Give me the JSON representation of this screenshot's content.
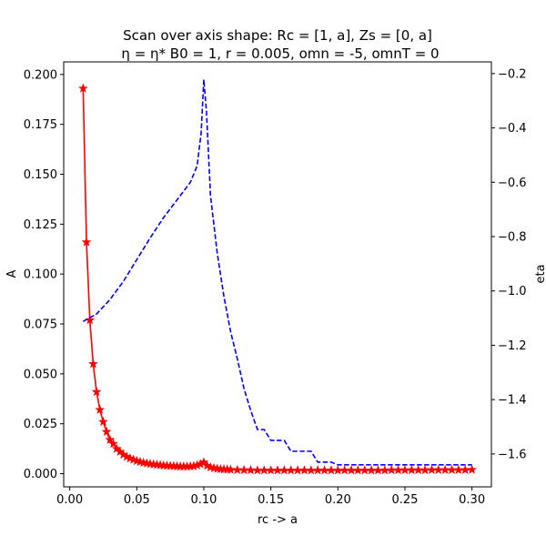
{
  "chart_data": {
    "type": "line",
    "title_line1": "Scan over axis shape: Rc = [1, a], Zs = [0, a]",
    "title_line2": "η = η* B0 = 1, r = 0.005, omn = -5, omnT = 0",
    "xlabel": "rc -> a",
    "ylabel": "A",
    "y2label": "eta",
    "xlim": [
      -0.0045,
      0.3145
    ],
    "ylim": [
      -0.0066,
      0.2063
    ],
    "y2lim": [
      -1.721,
      -0.157
    ],
    "xticks": [
      "0.00",
      "0.05",
      "0.10",
      "0.15",
      "0.20",
      "0.25",
      "0.30"
    ],
    "xtick_values": [
      0.0,
      0.05,
      0.1,
      0.15,
      0.2,
      0.25,
      0.3
    ],
    "yticks": [
      "0.000",
      "0.025",
      "0.050",
      "0.075",
      "0.100",
      "0.125",
      "0.150",
      "0.175",
      "0.200"
    ],
    "ytick_values": [
      0.0,
      0.025,
      0.05,
      0.075,
      0.1,
      0.125,
      0.15,
      0.175,
      0.2
    ],
    "y2ticks": [
      "−1.6",
      "−1.4",
      "−1.2",
      "−1.0",
      "−0.8",
      "−0.6",
      "−0.4",
      "−0.2"
    ],
    "y2tick_values": [
      -1.6,
      -1.4,
      -1.2,
      -1.0,
      -0.8,
      -0.6,
      -0.4,
      -0.2
    ],
    "grid": false,
    "series": [
      {
        "axis": "left",
        "color": "#ff0000",
        "style": "solid",
        "marker": "star",
        "x": [
          0.01,
          0.0125,
          0.015,
          0.0175,
          0.02,
          0.0225,
          0.025,
          0.0275,
          0.03,
          0.0325,
          0.035,
          0.0375,
          0.04,
          0.0425,
          0.045,
          0.0475,
          0.05,
          0.0525,
          0.055,
          0.0575,
          0.06,
          0.0625,
          0.065,
          0.0675,
          0.07,
          0.0725,
          0.075,
          0.0775,
          0.08,
          0.0825,
          0.085,
          0.0875,
          0.09,
          0.0925,
          0.095,
          0.0975,
          0.1,
          0.1025,
          0.105,
          0.1075,
          0.11,
          0.1125,
          0.115,
          0.1175,
          0.12,
          0.125,
          0.13,
          0.135,
          0.14,
          0.145,
          0.15,
          0.155,
          0.16,
          0.165,
          0.17,
          0.175,
          0.18,
          0.185,
          0.19,
          0.195,
          0.2,
          0.205,
          0.21,
          0.215,
          0.22,
          0.225,
          0.23,
          0.235,
          0.24,
          0.245,
          0.25,
          0.255,
          0.26,
          0.265,
          0.27,
          0.275,
          0.28,
          0.285,
          0.29,
          0.295,
          0.3
        ],
        "values": [
          0.193,
          0.116,
          0.077,
          0.055,
          0.041,
          0.032,
          0.026,
          0.021,
          0.017,
          0.015,
          0.0125,
          0.011,
          0.0095,
          0.0085,
          0.0077,
          0.007,
          0.0064,
          0.0059,
          0.0055,
          0.0052,
          0.0049,
          0.0047,
          0.0045,
          0.0043,
          0.0041,
          0.004,
          0.0039,
          0.0038,
          0.0037,
          0.0036,
          0.0036,
          0.0036,
          0.0037,
          0.0038,
          0.0042,
          0.0048,
          0.0057,
          0.004,
          0.0032,
          0.0028,
          0.0025,
          0.0023,
          0.0022,
          0.0021,
          0.002,
          0.0019,
          0.0018,
          0.0018,
          0.0017,
          0.0017,
          0.0017,
          0.0017,
          0.0017,
          0.0017,
          0.0017,
          0.0017,
          0.0017,
          0.0017,
          0.0017,
          0.0017,
          0.0017,
          0.0017,
          0.0017,
          0.0017,
          0.0017,
          0.0017,
          0.0017,
          0.0017,
          0.0018,
          0.0018,
          0.0018,
          0.0018,
          0.0018,
          0.0018,
          0.0019,
          0.0019,
          0.0019,
          0.0019,
          0.0019,
          0.0019,
          0.002
        ]
      },
      {
        "axis": "right",
        "color": "#0000ff",
        "style": "dashed",
        "marker": "none",
        "x": [
          0.01,
          0.02,
          0.03,
          0.04,
          0.05,
          0.06,
          0.07,
          0.08,
          0.09,
          0.095,
          0.098,
          0.1,
          0.102,
          0.105,
          0.11,
          0.115,
          0.12,
          0.125,
          0.13,
          0.135,
          0.14,
          0.145,
          0.15,
          0.155,
          0.16,
          0.165,
          0.17,
          0.175,
          0.18,
          0.185,
          0.19,
          0.195,
          0.2,
          0.205,
          0.21,
          0.22,
          0.23,
          0.24,
          0.25,
          0.26,
          0.27,
          0.28,
          0.29,
          0.3
        ],
        "values": [
          -1.112,
          -1.085,
          -1.032,
          -0.965,
          -0.885,
          -0.805,
          -0.73,
          -0.665,
          -0.6,
          -0.54,
          -0.42,
          -0.222,
          -0.34,
          -0.65,
          -0.86,
          -1.02,
          -1.15,
          -1.25,
          -1.36,
          -1.44,
          -1.51,
          -1.51,
          -1.55,
          -1.55,
          -1.55,
          -1.59,
          -1.59,
          -1.59,
          -1.59,
          -1.63,
          -1.63,
          -1.63,
          -1.64,
          -1.64,
          -1.64,
          -1.64,
          -1.64,
          -1.64,
          -1.64,
          -1.64,
          -1.64,
          -1.64,
          -1.64,
          -1.64
        ]
      }
    ]
  }
}
